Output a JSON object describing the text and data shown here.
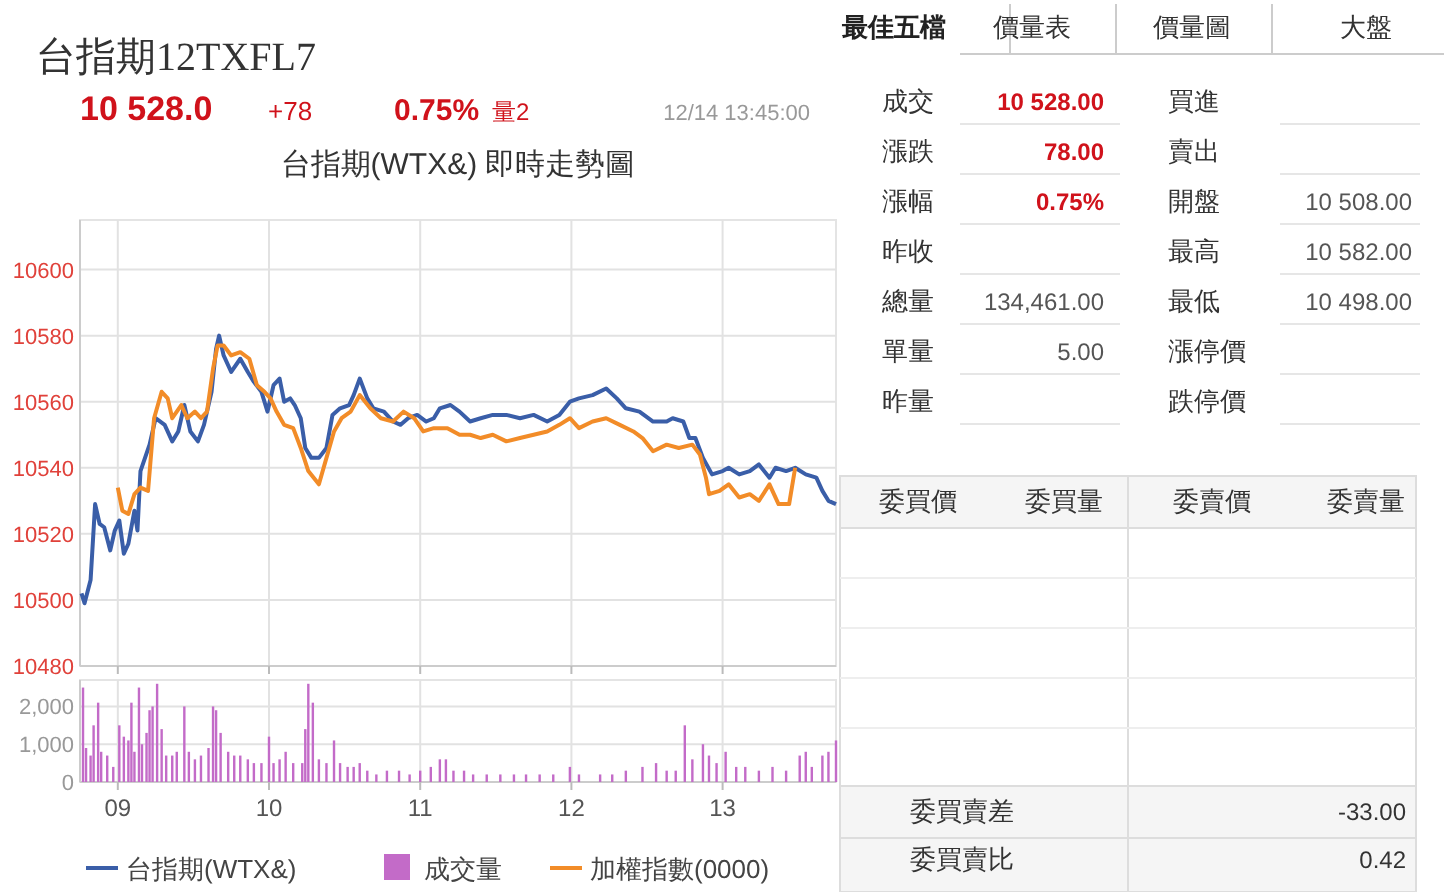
{
  "chart_data": [
    {
      "type": "line",
      "title": "台指期(WTX&) 即時走勢圖",
      "xlim": [
        8.75,
        13.75
      ],
      "xticks": [
        {
          "value": 9,
          "label": null
        },
        {
          "value": 10,
          "label": null
        },
        {
          "value": 11,
          "label": null
        },
        {
          "value": 12,
          "label": null
        },
        {
          "value": 13,
          "label": null
        }
      ],
      "ylim": [
        10480,
        10615
      ],
      "yticks": [
        10480,
        10500,
        10520,
        10540,
        10560,
        10580,
        10600
      ],
      "tick_labels": "y",
      "grid": true,
      "legend": "bottom",
      "series": [
        {
          "name": "台指期(WTX&)",
          "color": "#3a5ea8",
          "x": [
            8.76,
            8.78,
            8.82,
            8.85,
            8.88,
            8.91,
            8.95,
            8.98,
            9.01,
            9.04,
            9.07,
            9.11,
            9.13,
            9.15,
            9.21,
            9.25,
            9.31,
            9.36,
            9.4,
            9.44,
            9.48,
            9.53,
            9.57,
            9.62,
            9.65,
            9.67,
            9.7,
            9.75,
            9.81,
            9.86,
            9.9,
            9.95,
            9.99,
            10.03,
            10.07,
            10.1,
            10.14,
            10.17,
            10.21,
            10.24,
            10.28,
            10.33,
            10.38,
            10.42,
            10.47,
            10.53,
            10.56,
            10.6,
            10.65,
            10.69,
            10.76,
            10.82,
            10.87,
            10.92,
            10.98,
            11.04,
            11.09,
            11.13,
            11.2,
            11.26,
            11.33,
            11.4,
            11.48,
            11.57,
            11.66,
            11.75,
            11.84,
            11.92,
            11.99,
            12.05,
            12.14,
            12.23,
            12.3,
            12.36,
            12.45,
            12.54,
            12.63,
            12.67,
            12.74,
            12.78,
            12.82,
            12.87,
            12.93,
            13,
            13.04,
            13.11,
            13.18,
            13.24,
            13.31,
            13.35,
            13.42,
            13.48,
            13.55,
            13.62,
            13.66,
            13.7,
            13.75
          ],
          "values": [
            10502,
            10499,
            10506,
            10529,
            10523,
            10522,
            10515,
            10521,
            10524,
            10514,
            10517,
            10527,
            10521,
            10539,
            10547,
            10555,
            10553,
            10548,
            10551,
            10559,
            10551,
            10548,
            10553,
            10563,
            10576,
            10580,
            10574,
            10569,
            10573,
            10569,
            10566,
            10563,
            10557,
            10565,
            10567,
            10560,
            10561,
            10559,
            10555,
            10546,
            10543,
            10543,
            10546,
            10556,
            10558,
            10559,
            10562,
            10567,
            10561,
            10558,
            10557,
            10554,
            10553,
            10555,
            10556,
            10554,
            10555,
            10558,
            10559,
            10557,
            10554,
            10555,
            10556,
            10556,
            10555,
            10556,
            10554,
            10556,
            10560,
            10561,
            10562,
            10564,
            10561,
            10558,
            10557,
            10554,
            10554,
            10555,
            10554,
            10549,
            10549,
            10543,
            10538,
            10539,
            10540,
            10538,
            10539,
            10541,
            10537,
            10540,
            10539,
            10540,
            10538,
            10537,
            10533,
            10530,
            10529
          ]
        },
        {
          "name": "加權指數(0000)",
          "color": "#f28c28",
          "x": [
            9,
            9.03,
            9.07,
            9.11,
            9.15,
            9.2,
            9.24,
            9.29,
            9.33,
            9.36,
            9.42,
            9.46,
            9.51,
            9.55,
            9.59,
            9.63,
            9.66,
            9.7,
            9.75,
            9.81,
            9.87,
            9.92,
            9.97,
            10.01,
            10.05,
            10.1,
            10.16,
            10.21,
            10.26,
            10.33,
            10.38,
            10.43,
            10.48,
            10.54,
            10.6,
            10.67,
            10.74,
            10.82,
            10.89,
            10.96,
            11.02,
            11.09,
            11.18,
            11.26,
            11.33,
            11.4,
            11.48,
            11.57,
            11.66,
            11.75,
            11.84,
            11.92,
            11.99,
            12.05,
            12.14,
            12.23,
            12.32,
            12.41,
            12.47,
            12.54,
            12.63,
            12.71,
            12.8,
            12.85,
            12.89,
            12.91,
            12.98,
            13.04,
            13.11,
            13.18,
            13.24,
            13.31,
            13.37,
            13.44,
            13.48
          ],
          "values": [
            10534,
            10527,
            10526,
            10532,
            10534,
            10533,
            10555,
            10563,
            10561,
            10555,
            10559,
            10555,
            10557,
            10555,
            10557,
            10570,
            10577,
            10577,
            10574,
            10575,
            10573,
            10565,
            10563,
            10561,
            10557,
            10553,
            10552,
            10546,
            10539,
            10535,
            10543,
            10551,
            10555,
            10557,
            10562,
            10558,
            10555,
            10554,
            10557,
            10555,
            10551,
            10552,
            10552,
            10550,
            10550,
            10549,
            10550,
            10548,
            10549,
            10550,
            10551,
            10553,
            10555,
            10552,
            10554,
            10555,
            10553,
            10551,
            10549,
            10545,
            10547,
            10546,
            10547,
            10544,
            10537,
            10532,
            10533,
            10535,
            10531,
            10532,
            10530,
            10535,
            10529,
            10529,
            10540
          ]
        }
      ]
    },
    {
      "type": "bar",
      "xlim": [
        8.75,
        13.75
      ],
      "xticks": [
        {
          "value": 9,
          "label": "09"
        },
        {
          "value": 10,
          "label": "10"
        },
        {
          "value": 11,
          "label": "11"
        },
        {
          "value": 12,
          "label": "12"
        },
        {
          "value": 13,
          "label": "13"
        }
      ],
      "ylim": [
        0,
        2700
      ],
      "yticks": [
        0,
        {
          "value": 1000,
          "label": "1,000"
        },
        {
          "value": 2000,
          "label": "2,000"
        }
      ],
      "grid": true,
      "legend": "bottom",
      "series": [
        {
          "name": "成交量",
          "color": "#c36bc8",
          "x": [
            8.77,
            8.79,
            8.82,
            8.84,
            8.87,
            8.89,
            8.93,
            8.97,
            9.01,
            9.04,
            9.07,
            9.09,
            9.11,
            9.14,
            9.16,
            9.19,
            9.21,
            9.23,
            9.26,
            9.29,
            9.32,
            9.36,
            9.39,
            9.44,
            9.47,
            9.51,
            9.55,
            9.6,
            9.63,
            9.65,
            9.68,
            9.73,
            9.77,
            9.81,
            9.86,
            9.9,
            9.95,
            10,
            10.03,
            10.07,
            10.11,
            10.16,
            10.22,
            10.24,
            10.26,
            10.29,
            10.33,
            10.38,
            10.43,
            10.47,
            10.52,
            10.56,
            10.6,
            10.65,
            10.71,
            10.78,
            10.86,
            10.93,
            11,
            11.07,
            11.13,
            11.17,
            11.22,
            11.29,
            11.35,
            11.44,
            11.53,
            11.62,
            11.7,
            11.79,
            11.88,
            11.99,
            12.05,
            12.19,
            12.27,
            12.36,
            12.47,
            12.56,
            12.63,
            12.69,
            12.75,
            12.8,
            12.87,
            12.91,
            12.96,
            13.02,
            13.09,
            13.15,
            13.24,
            13.33,
            13.42,
            13.51,
            13.55,
            13.59,
            13.66,
            13.7,
            13.75
          ],
          "values": [
            2500,
            900,
            700,
            1500,
            2100,
            800,
            700,
            400,
            1500,
            1200,
            1100,
            2100,
            800,
            2500,
            1000,
            1300,
            1900,
            2000,
            2600,
            1400,
            700,
            700,
            800,
            2000,
            800,
            600,
            700,
            900,
            2000,
            1900,
            1300,
            800,
            700,
            700,
            600,
            500,
            500,
            1200,
            500,
            600,
            800,
            500,
            500,
            1400,
            2600,
            2100,
            600,
            500,
            1100,
            500,
            400,
            400,
            500,
            300,
            200,
            300,
            300,
            200,
            300,
            400,
            600,
            600,
            300,
            300,
            200,
            200,
            200,
            200,
            200,
            200,
            200,
            400,
            200,
            200,
            200,
            300,
            400,
            500,
            300,
            300,
            1500,
            600,
            1000,
            700,
            500,
            800,
            400,
            400,
            300,
            400,
            300,
            700,
            800,
            400,
            700,
            800,
            1100
          ]
        }
      ]
    },
    {
      "type": "other",
      "annotations": [
        "台指期12TXFL7",
        "10 528.0",
        "+78",
        "0.75%",
        "量2",
        "12/14 13:45:00",
        "最佳五檔",
        "價量表",
        "價量圖",
        "大盤",
        "成交",
        "10 528.00",
        "漲跌",
        "78.00",
        "漲幅",
        "0.75%",
        "昨收",
        "總量",
        "134,461.00",
        "單量",
        "5.00",
        "昨量",
        "買進",
        "賣出",
        "開盤",
        "10 508.00",
        "最高",
        "10 582.00",
        "最低",
        "10 498.00",
        "漲停價",
        "跌停價",
        "委買價",
        "委買量",
        "委賣價",
        "委賣量",
        "委買賣差",
        "-33.00",
        "委買賣比",
        "0.42"
      ]
    }
  ]
}
